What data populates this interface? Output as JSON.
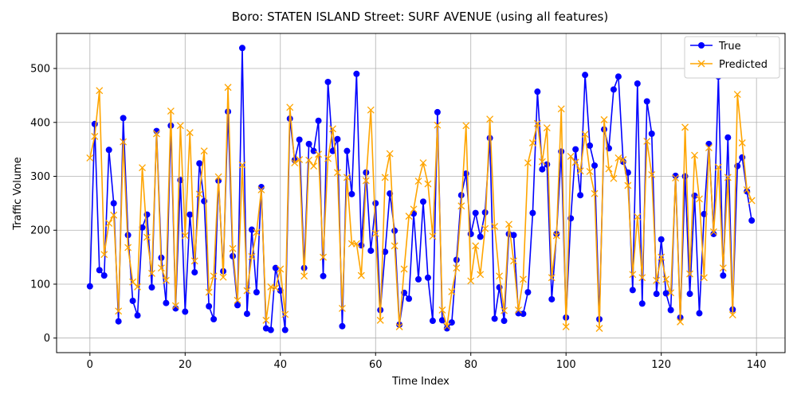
{
  "chart_data": {
    "type": "line",
    "title": "Boro: STATEN ISLAND Street: SURF AVENUE (using all features)",
    "xlabel": "Time Index",
    "ylabel": "Traffic Volume",
    "xlim": [
      -7,
      146
    ],
    "ylim": [
      -27,
      565
    ],
    "x_ticks": [
      0,
      20,
      40,
      60,
      80,
      100,
      120,
      140
    ],
    "y_ticks": [
      0,
      100,
      200,
      300,
      400,
      500
    ],
    "grid": true,
    "legend_position": "top-right",
    "x": [
      0,
      1,
      2,
      3,
      4,
      5,
      6,
      7,
      8,
      9,
      10,
      11,
      12,
      13,
      14,
      15,
      16,
      17,
      18,
      19,
      20,
      21,
      22,
      23,
      24,
      25,
      26,
      27,
      28,
      29,
      30,
      31,
      32,
      33,
      34,
      35,
      36,
      37,
      38,
      39,
      40,
      41,
      42,
      43,
      44,
      45,
      46,
      47,
      48,
      49,
      50,
      51,
      52,
      53,
      54,
      55,
      56,
      57,
      58,
      59,
      60,
      61,
      62,
      63,
      64,
      65,
      66,
      67,
      68,
      69,
      70,
      71,
      72,
      73,
      74,
      75,
      76,
      77,
      78,
      79,
      80,
      81,
      82,
      83,
      84,
      85,
      86,
      87,
      88,
      89,
      90,
      91,
      92,
      93,
      94,
      95,
      96,
      97,
      98,
      99,
      100,
      101,
      102,
      103,
      104,
      105,
      106,
      107,
      108,
      109,
      110,
      111,
      112,
      113,
      114,
      115,
      116,
      117,
      118,
      119,
      120,
      121,
      122,
      123,
      124,
      125,
      126,
      127,
      128,
      129,
      130,
      131,
      132,
      133,
      134,
      135,
      136,
      137,
      138,
      139
    ],
    "series": [
      {
        "name": "True",
        "color": "#0000ff",
        "marker": "circle",
        "values": [
          96,
          397,
          126,
          116,
          349,
          250,
          31,
          408,
          191,
          69,
          42,
          205,
          229,
          94,
          384,
          149,
          65,
          394,
          55,
          293,
          49,
          229,
          122,
          324,
          254,
          59,
          35,
          292,
          124,
          420,
          152,
          61,
          538,
          45,
          201,
          85,
          280,
          18,
          15,
          130,
          88,
          15,
          407,
          330,
          368,
          130,
          360,
          347,
          403,
          115,
          475,
          347,
          369,
          22,
          347,
          267,
          490,
          172,
          307,
          162,
          250,
          52,
          160,
          268,
          199,
          25,
          84,
          73,
          231,
          109,
          253,
          112,
          32,
          419,
          33,
          18,
          29,
          145,
          265,
          305,
          193,
          232,
          188,
          233,
          371,
          36,
          94,
          32,
          193,
          191,
          46,
          45,
          85,
          232,
          457,
          313,
          322,
          72,
          193,
          346,
          38,
          222,
          350,
          265,
          488,
          357,
          320,
          35,
          387,
          352,
          461,
          485,
          327,
          307,
          89,
          472,
          64,
          439,
          379,
          82,
          183,
          83,
          52,
          301,
          38,
          300,
          82,
          264,
          46,
          230,
          360,
          193,
          485,
          116,
          372,
          53,
          319,
          335,
          272,
          218
        ]
      },
      {
        "name": "Predicted",
        "color": "#ffa500",
        "marker": "x",
        "values": [
          334,
          374,
          459,
          155,
          213,
          228,
          50,
          364,
          168,
          104,
          95,
          316,
          187,
          120,
          379,
          130,
          107,
          421,
          60,
          394,
          190,
          381,
          143,
          267,
          347,
          85,
          115,
          299,
          113,
          465,
          166,
          70,
          321,
          88,
          151,
          196,
          275,
          33,
          95,
          93,
          128,
          44,
          428,
          325,
          331,
          115,
          330,
          319,
          341,
          150,
          333,
          388,
          307,
          55,
          298,
          175,
          175,
          116,
          292,
          423,
          194,
          33,
          298,
          342,
          171,
          21,
          128,
          226,
          239,
          291,
          325,
          286,
          189,
          395,
          52,
          22,
          86,
          130,
          245,
          394,
          106,
          171,
          118,
          203,
          406,
          207,
          115,
          51,
          211,
          143,
          52,
          109,
          325,
          362,
          398,
          327,
          390,
          112,
          190,
          425,
          21,
          337,
          326,
          310,
          378,
          309,
          268,
          18,
          405,
          314,
          296,
          334,
          331,
          283,
          118,
          225,
          112,
          365,
          303,
          107,
          150,
          109,
          84,
          297,
          30,
          391,
          119,
          339,
          258,
          112,
          353,
          197,
          317,
          130,
          298,
          43,
          452,
          362,
          275,
          255
        ]
      }
    ]
  }
}
